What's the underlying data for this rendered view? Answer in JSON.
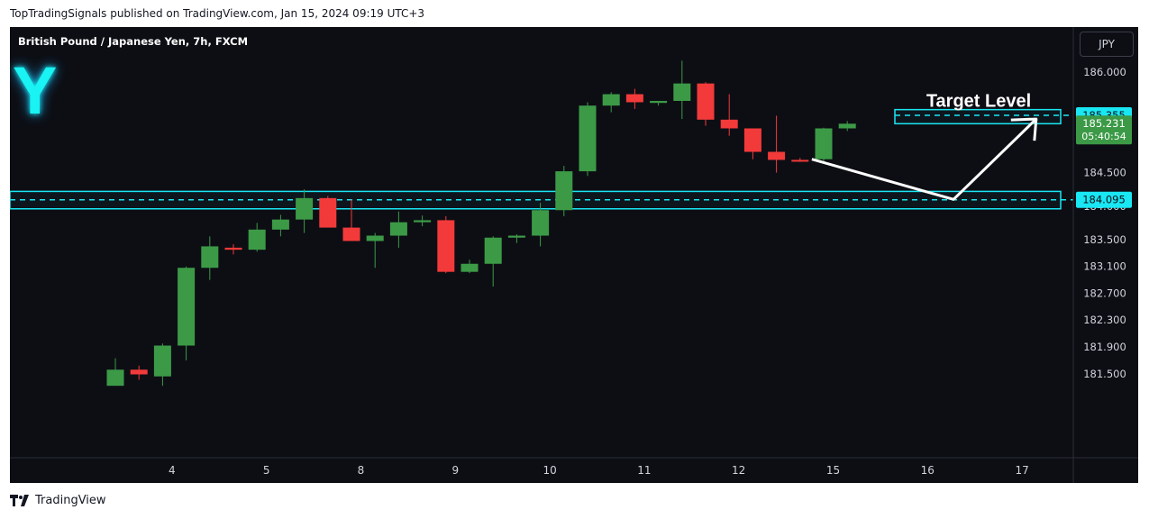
{
  "header": {
    "published_text": "TopTradingSignals published on TradingView.com, Jan 15, 2024 09:19 UTC+3"
  },
  "chart": {
    "symbol_title": "British Pound / Japanese Yen, 7h, FXCM",
    "logo_letter": "Y",
    "currency_button": "JPY",
    "target_label": "Target Level",
    "price_labels": {
      "target": "185.355",
      "current_price": "185.231",
      "countdown": "05:40:54",
      "support": "184.095"
    }
  },
  "footer": {
    "brand": "TradingView"
  },
  "colors": {
    "background": "#0d0e14",
    "up": "#3c9a47",
    "down": "#f23a3a",
    "zone": "#19e7f3",
    "axis_text": "#d1d4dc"
  },
  "chart_data": {
    "type": "candlestick",
    "title": "British Pound / Japanese Yen, 7h, FXCM",
    "y_axis": {
      "position": "right",
      "ticks": [
        186.0,
        184.5,
        184.0,
        183.5,
        183.1,
        182.7,
        182.3,
        181.9,
        181.5
      ],
      "tick_labels": [
        "186.000",
        "184.500",
        "184.000",
        "183.500",
        "183.100",
        "182.700",
        "182.300",
        "181.900",
        "181.500"
      ]
    },
    "x_axis": {
      "ticks": [
        {
          "label": "4",
          "bar": 2.4
        },
        {
          "label": "5",
          "bar": 6.4
        },
        {
          "label": "8",
          "bar": 10.4
        },
        {
          "label": "9",
          "bar": 14.4
        },
        {
          "label": "10",
          "bar": 18.4
        },
        {
          "label": "11",
          "bar": 22.4
        },
        {
          "label": "12",
          "bar": 26.4
        },
        {
          "label": "15",
          "bar": 30.4
        },
        {
          "label": "16",
          "bar": 34.4
        },
        {
          "label": "17",
          "bar": 38.4
        }
      ]
    },
    "candles": [
      {
        "o": 181.32,
        "h": 181.73,
        "l": 181.32,
        "c": 181.56
      },
      {
        "o": 181.56,
        "h": 181.62,
        "l": 181.41,
        "c": 181.49
      },
      {
        "o": 181.46,
        "h": 181.95,
        "l": 181.32,
        "c": 181.92
      },
      {
        "o": 181.92,
        "h": 183.1,
        "l": 181.7,
        "c": 183.08
      },
      {
        "o": 183.08,
        "h": 183.55,
        "l": 182.9,
        "c": 183.4
      },
      {
        "o": 183.38,
        "h": 183.43,
        "l": 183.28,
        "c": 183.35
      },
      {
        "o": 183.35,
        "h": 183.75,
        "l": 183.32,
        "c": 183.65
      },
      {
        "o": 183.65,
        "h": 183.87,
        "l": 183.55,
        "c": 183.8
      },
      {
        "o": 183.8,
        "h": 184.25,
        "l": 183.6,
        "c": 184.12
      },
      {
        "o": 184.12,
        "h": 184.15,
        "l": 183.7,
        "c": 183.68
      },
      {
        "o": 183.68,
        "h": 184.1,
        "l": 183.48,
        "c": 183.48
      },
      {
        "o": 183.48,
        "h": 183.6,
        "l": 183.08,
        "c": 183.56
      },
      {
        "o": 183.56,
        "h": 183.92,
        "l": 183.38,
        "c": 183.76
      },
      {
        "o": 183.76,
        "h": 183.86,
        "l": 183.7,
        "c": 183.79
      },
      {
        "o": 183.79,
        "h": 183.85,
        "l": 183.0,
        "c": 183.02
      },
      {
        "o": 183.02,
        "h": 183.2,
        "l": 183.0,
        "c": 183.14
      },
      {
        "o": 183.14,
        "h": 183.55,
        "l": 182.8,
        "c": 183.53
      },
      {
        "o": 183.53,
        "h": 183.58,
        "l": 183.45,
        "c": 183.56
      },
      {
        "o": 183.56,
        "h": 184.05,
        "l": 183.4,
        "c": 183.94
      },
      {
        "o": 183.94,
        "h": 184.6,
        "l": 183.85,
        "c": 184.52
      },
      {
        "o": 184.52,
        "h": 185.55,
        "l": 184.45,
        "c": 185.5
      },
      {
        "o": 185.5,
        "h": 185.7,
        "l": 185.4,
        "c": 185.67
      },
      {
        "o": 185.67,
        "h": 185.75,
        "l": 185.45,
        "c": 185.55
      },
      {
        "o": 185.54,
        "h": 185.57,
        "l": 185.5,
        "c": 185.57
      },
      {
        "o": 185.57,
        "h": 186.17,
        "l": 185.3,
        "c": 185.83
      },
      {
        "o": 185.83,
        "h": 185.85,
        "l": 185.2,
        "c": 185.29
      },
      {
        "o": 185.29,
        "h": 185.67,
        "l": 185.05,
        "c": 185.16
      },
      {
        "o": 185.16,
        "h": 185.16,
        "l": 184.7,
        "c": 184.81
      },
      {
        "o": 184.81,
        "h": 185.35,
        "l": 184.5,
        "c": 184.69
      },
      {
        "o": 184.69,
        "h": 184.72,
        "l": 184.66,
        "c": 184.67
      },
      {
        "o": 184.7,
        "h": 185.17,
        "l": 184.67,
        "c": 185.16
      },
      {
        "o": 185.16,
        "h": 185.27,
        "l": 185.12,
        "c": 185.23
      }
    ],
    "support_zone": {
      "low": 183.96,
      "high": 184.22,
      "level": 184.095
    },
    "target_zone": {
      "low": 185.23,
      "high": 185.44,
      "level": 185.355
    },
    "current_price": 185.231,
    "projection_path": [
      {
        "bar": 29.5,
        "y": 184.7
      },
      {
        "bar": 35.5,
        "y": 184.1
      },
      {
        "bar": 39.0,
        "y": 185.3
      }
    ],
    "grid": false
  }
}
